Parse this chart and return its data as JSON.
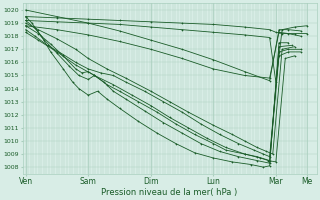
{
  "xlabel": "Pression niveau de la mer( hPa )",
  "ylim": [
    1007.5,
    1020.5
  ],
  "ytick_vals": [
    1008,
    1009,
    1010,
    1011,
    1012,
    1013,
    1014,
    1015,
    1016,
    1017,
    1018,
    1019,
    1020
  ],
  "xtick_labels": [
    "Ven",
    "Sam",
    "Dim",
    "Lun",
    "Mar",
    "Me"
  ],
  "xtick_positions": [
    0,
    1,
    2,
    3,
    4,
    4.5
  ],
  "xlim": [
    -0.05,
    4.65
  ],
  "bg_color": "#d8ede6",
  "grid_color": "#aacfbe",
  "line_color": "#1a5c28",
  "figsize": [
    3.2,
    2.0
  ],
  "dpi": 100
}
